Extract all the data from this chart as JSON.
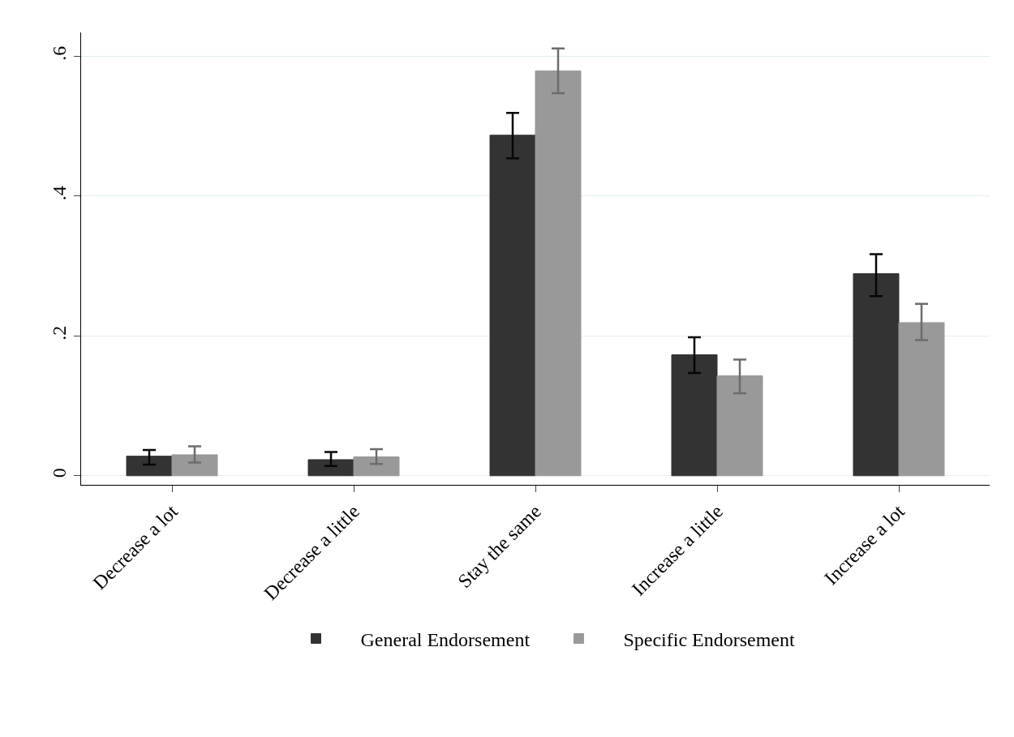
{
  "chart_data": {
    "type": "bar",
    "categories": [
      "Decrease a lot",
      "Decrease a little",
      "Stay the same",
      "Increase a little",
      "Increase a lot"
    ],
    "series": [
      {
        "name": "General Endorsement",
        "color": "#333333",
        "values": [
          0.028,
          0.023,
          0.487,
          0.173,
          0.289
        ],
        "errors": [
          [
            0.016,
            0.037
          ],
          [
            0.014,
            0.034
          ],
          [
            0.454,
            0.519
          ],
          [
            0.147,
            0.198
          ],
          [
            0.257,
            0.317
          ]
        ]
      },
      {
        "name": "Specific Endorsement",
        "color": "#999999",
        "values": [
          0.03,
          0.027,
          0.579,
          0.143,
          0.219
        ],
        "errors": [
          [
            0.019,
            0.042
          ],
          [
            0.017,
            0.038
          ],
          [
            0.547,
            0.611
          ],
          [
            0.118,
            0.166
          ],
          [
            0.194,
            0.246
          ]
        ]
      }
    ],
    "ylim": [
      -0.013,
      0.634
    ],
    "yticks": [
      {
        "value": 0,
        "label": "0"
      },
      {
        "value": 0.2,
        "label": ".2"
      },
      {
        "value": 0.4,
        "label": ".4"
      },
      {
        "value": 0.6,
        "label": ".6"
      }
    ],
    "grid": "y",
    "legend": "bottom"
  }
}
